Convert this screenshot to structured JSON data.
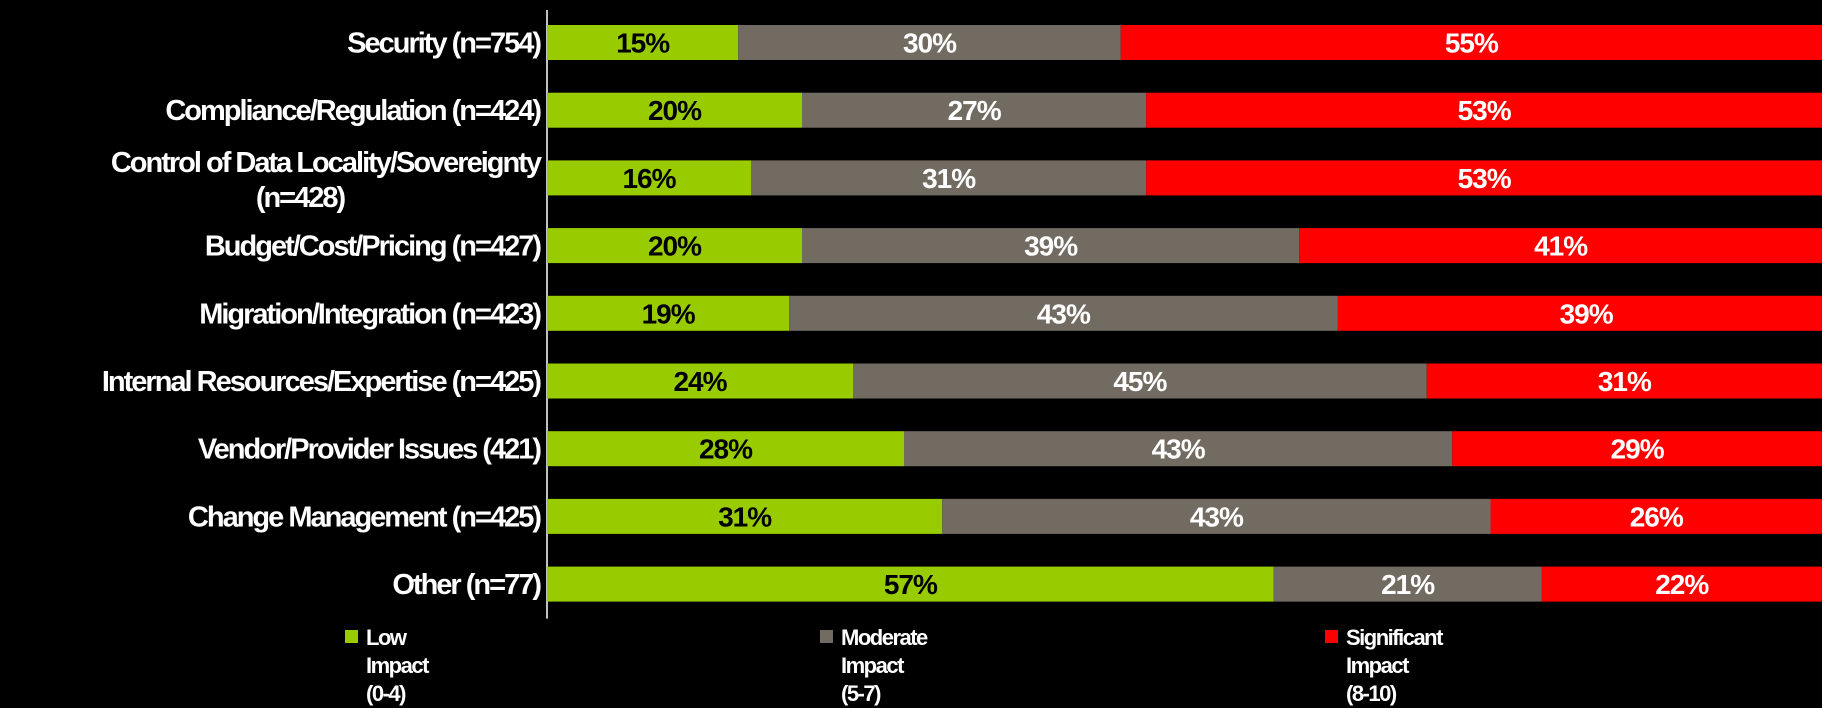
{
  "chart_data": {
    "type": "bar",
    "orientation": "horizontal",
    "stacked": true,
    "categories": [
      "Security (n=754)",
      "Compliance/Regulation (n=424)",
      "Control of Data Locality/Sovereignty (n=428)",
      "Budget/Cost/Pricing (n=427)",
      "Migration/Integration (n=423)",
      "Internal Resources/Expertise (n=425)",
      "Vendor/Provider Issues (421)",
      "Change Management (n=425)",
      "Other (n=77)"
    ],
    "series": [
      {
        "name": "Low Impact (0-4)",
        "color": "#99CC00",
        "label_color": "#000000",
        "values": [
          15,
          20,
          16,
          20,
          19,
          24,
          28,
          31,
          57
        ]
      },
      {
        "name": "Moderate Impact (5-7)",
        "color": "#726B62",
        "label_color": "#ffffff",
        "values": [
          30,
          27,
          31,
          39,
          43,
          45,
          43,
          43,
          21
        ]
      },
      {
        "name": "Significant Impact (8-10)",
        "color": "#FF0000",
        "label_color": "#ffffff",
        "values": [
          55,
          53,
          53,
          41,
          39,
          31,
          29,
          26,
          22
        ]
      }
    ],
    "value_suffix": "%",
    "xlim": [
      0,
      100
    ],
    "legend_position": "bottom",
    "grid": false,
    "title": "",
    "xlabel": "",
    "ylabel": ""
  },
  "legend": [
    {
      "lines": [
        "Low",
        "Impact",
        "(0-4)"
      ],
      "color": "#99CC00"
    },
    {
      "lines": [
        "Moderate",
        "Impact",
        "(5-7)"
      ],
      "color": "#726B62"
    },
    {
      "lines": [
        "Significant",
        "Impact",
        "(8-10)"
      ],
      "color": "#FF0000"
    }
  ]
}
